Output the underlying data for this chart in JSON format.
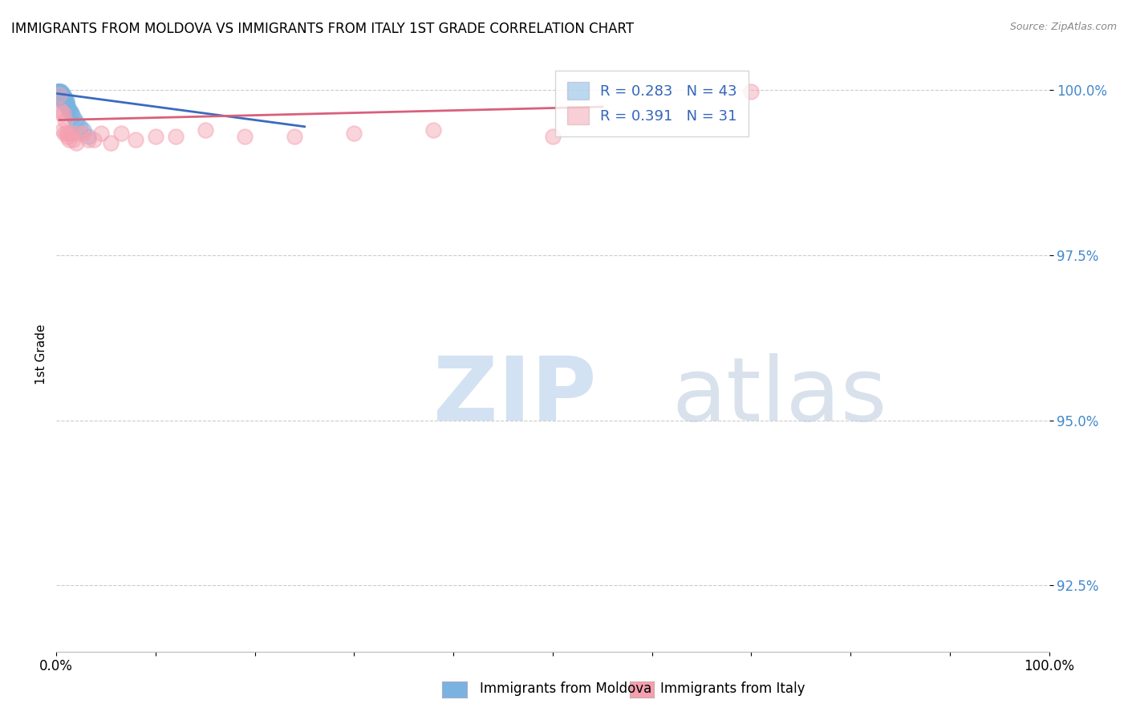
{
  "title": "IMMIGRANTS FROM MOLDOVA VS IMMIGRANTS FROM ITALY 1ST GRADE CORRELATION CHART",
  "source": "Source: ZipAtlas.com",
  "ylabel": "1st Grade",
  "xlim": [
    0.0,
    1.0
  ],
  "ylim": [
    0.915,
    1.005
  ],
  "yticks": [
    0.925,
    0.95,
    0.975,
    1.0
  ],
  "ytick_labels": [
    "92.5%",
    "95.0%",
    "97.5%",
    "100.0%"
  ],
  "legend_r_moldova": "R = 0.283",
  "legend_n_moldova": "N = 43",
  "legend_r_italy": "R = 0.391",
  "legend_n_italy": "N = 31",
  "moldova_color": "#7ab3e0",
  "italy_color": "#f4a0b0",
  "moldova_line_color": "#3a6bbf",
  "italy_line_color": "#d9607a",
  "moldova_x": [
    0.001,
    0.001,
    0.002,
    0.002,
    0.002,
    0.003,
    0.003,
    0.003,
    0.003,
    0.003,
    0.003,
    0.004,
    0.004,
    0.004,
    0.004,
    0.005,
    0.005,
    0.005,
    0.005,
    0.006,
    0.006,
    0.006,
    0.007,
    0.007,
    0.007,
    0.008,
    0.008,
    0.009,
    0.009,
    0.01,
    0.01,
    0.011,
    0.011,
    0.012,
    0.013,
    0.014,
    0.015,
    0.017,
    0.019,
    0.021,
    0.024,
    0.027,
    0.032
  ],
  "moldova_y": [
    0.9998,
    0.9998,
    0.9998,
    0.9998,
    0.9993,
    0.9998,
    0.9998,
    0.9995,
    0.9993,
    0.999,
    0.9988,
    0.9998,
    0.9995,
    0.9988,
    0.9985,
    0.9998,
    0.9995,
    0.999,
    0.9988,
    0.9995,
    0.999,
    0.9985,
    0.9993,
    0.999,
    0.9985,
    0.999,
    0.9985,
    0.9988,
    0.998,
    0.9985,
    0.998,
    0.9978,
    0.9975,
    0.9972,
    0.997,
    0.9968,
    0.9965,
    0.996,
    0.9955,
    0.995,
    0.9945,
    0.994,
    0.993
  ],
  "moldova_trendline_x": [
    0.001,
    0.25
  ],
  "moldova_trendline_y": [
    0.9995,
    0.9945
  ],
  "italy_x": [
    0.003,
    0.004,
    0.005,
    0.006,
    0.007,
    0.008,
    0.009,
    0.01,
    0.011,
    0.012,
    0.013,
    0.015,
    0.017,
    0.02,
    0.023,
    0.027,
    0.032,
    0.038,
    0.045,
    0.055,
    0.065,
    0.08,
    0.1,
    0.12,
    0.15,
    0.19,
    0.24,
    0.3,
    0.38,
    0.5,
    0.7
  ],
  "italy_y": [
    0.9993,
    0.997,
    0.9965,
    0.994,
    0.9965,
    0.9935,
    0.9955,
    0.9935,
    0.993,
    0.9935,
    0.9925,
    0.9935,
    0.9925,
    0.992,
    0.9935,
    0.9935,
    0.9925,
    0.9925,
    0.9935,
    0.992,
    0.9935,
    0.9925,
    0.993,
    0.993,
    0.994,
    0.993,
    0.993,
    0.9935,
    0.994,
    0.993,
    0.9998
  ],
  "italy_trendline_x": [
    0.003,
    0.55
  ],
  "italy_trendline_y": [
    0.9955,
    0.9975
  ]
}
